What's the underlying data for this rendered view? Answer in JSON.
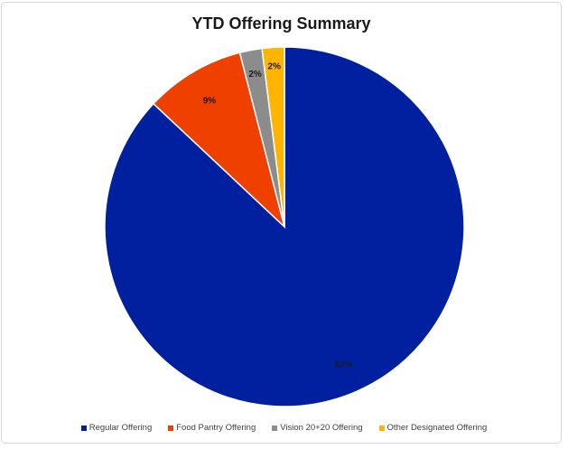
{
  "chart_data": {
    "type": "pie",
    "title": "YTD Offering Summary",
    "slices": [
      {
        "label": "Regular Offering",
        "value": 87,
        "display": "87%",
        "color": "#0020A0"
      },
      {
        "label": "Food Pantry Offering",
        "value": 9,
        "display": "9%",
        "color": "#F04000"
      },
      {
        "label": "Vision 20+20 Offering",
        "value": 2,
        "display": "2%",
        "color": "#8C8C8C"
      },
      {
        "label": "Other Designated Offering",
        "value": 2,
        "display": "2%",
        "color": "#FFB400"
      }
    ],
    "legend_position": "bottom"
  }
}
